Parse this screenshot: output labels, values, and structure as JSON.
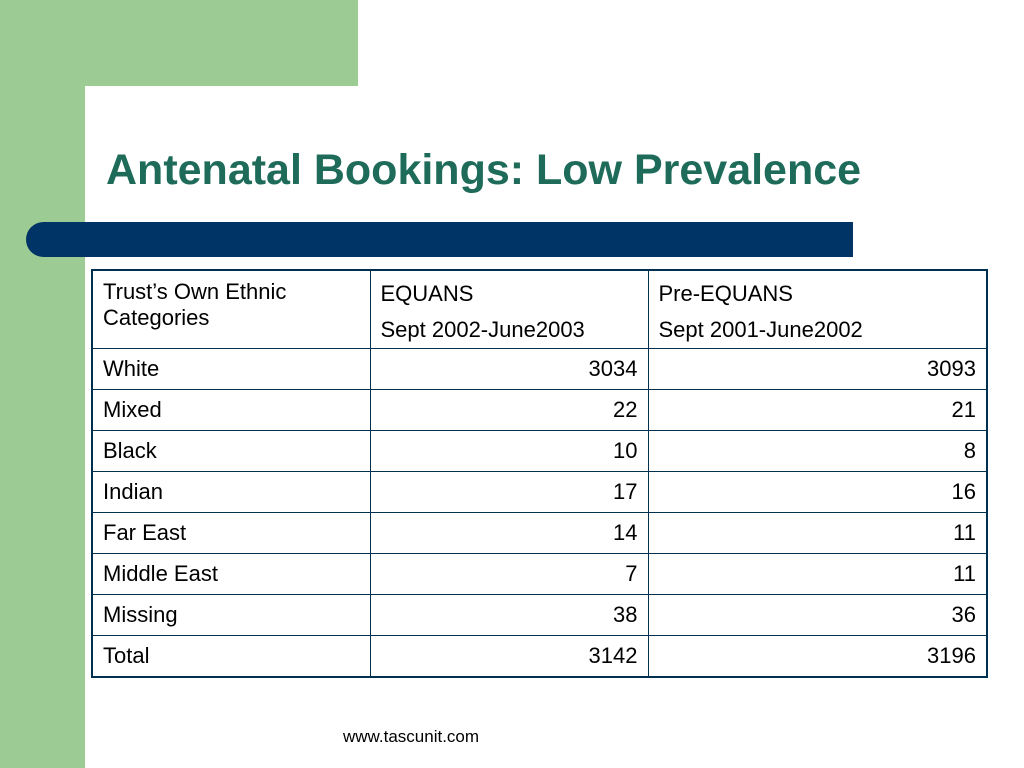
{
  "slide": {
    "title": "Antenatal Bookings: Low Prevalence",
    "footer": "www.tascunit.com"
  },
  "colors": {
    "green_band": "#9ccc94",
    "title_text": "#1e6b5a",
    "title_bar": "#003366",
    "table_border": "#003050"
  },
  "table": {
    "headers": [
      {
        "line1": "Trust’s Own Ethnic Categories",
        "line2": ""
      },
      {
        "line1": "EQUANS",
        "line2": "Sept 2002-June2003"
      },
      {
        "line1": "Pre-EQUANS",
        "line2": "Sept 2001-June2002"
      }
    ],
    "rows": [
      {
        "category": "White",
        "equans": "3034",
        "pre_equans": "3093"
      },
      {
        "category": "Mixed",
        "equans": "22",
        "pre_equans": "21"
      },
      {
        "category": "Black",
        "equans": "10",
        "pre_equans": "8"
      },
      {
        "category": "Indian",
        "equans": "17",
        "pre_equans": "16"
      },
      {
        "category": "Far East",
        "equans": "14",
        "pre_equans": "11"
      },
      {
        "category": "Middle East",
        "equans": "7",
        "pre_equans": "11"
      },
      {
        "category": "Missing",
        "equans": "38",
        "pre_equans": "36"
      },
      {
        "category": "Total",
        "equans": "3142",
        "pre_equans": "3196"
      }
    ]
  }
}
